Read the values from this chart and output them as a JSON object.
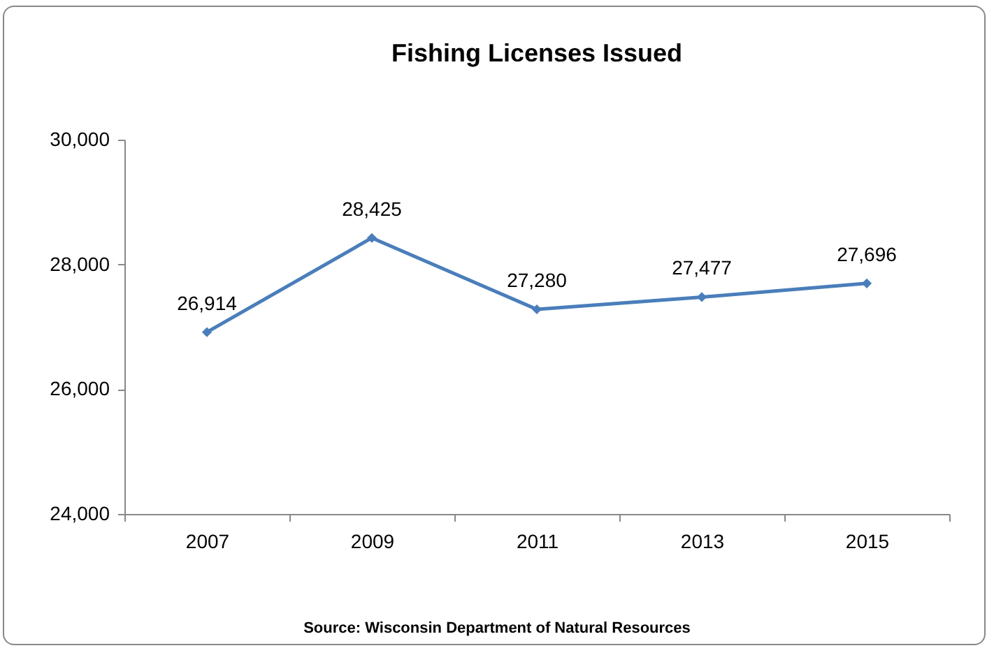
{
  "chart_data": {
    "type": "line",
    "title": "Fishing Licenses Issued",
    "categories": [
      "2007",
      "2009",
      "2011",
      "2013",
      "2015"
    ],
    "series": [
      {
        "color": "#4a7ebb",
        "values": [
          26914,
          28425,
          27280,
          27477,
          27696
        ],
        "value_labels": [
          "26,914",
          "28,425",
          "27,280",
          "27,477",
          "27,696"
        ]
      }
    ],
    "ylim": [
      24000,
      30000
    ],
    "yticks": [
      {
        "value": 24000,
        "label": "24,000"
      },
      {
        "value": 26000,
        "label": "26,000"
      },
      {
        "value": 28000,
        "label": "28,000"
      },
      {
        "value": 30000,
        "label": "30,000"
      }
    ],
    "grid": false,
    "marker": "diamond",
    "line_style": "solid",
    "annotations": [
      "Source:  Wisconsin Department of Natural Resources"
    ]
  }
}
